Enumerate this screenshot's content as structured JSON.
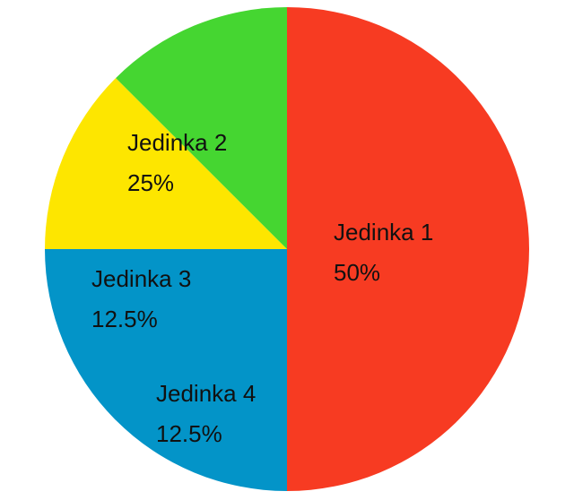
{
  "chart_data": {
    "type": "pie",
    "slices": [
      {
        "label": "Jedinka 1",
        "value": 50,
        "value_label": "50%",
        "color": "#f73b22"
      },
      {
        "label": "Jedinka 2",
        "value": 25,
        "value_label": "25%",
        "color": "#0394c8"
      },
      {
        "label": "Jedinka 3",
        "value": 12.5,
        "value_label": "12.5%",
        "color": "#fde600"
      },
      {
        "label": "Jedinka 4",
        "value": 12.5,
        "value_label": "12.5%",
        "color": "#45d631"
      }
    ]
  }
}
